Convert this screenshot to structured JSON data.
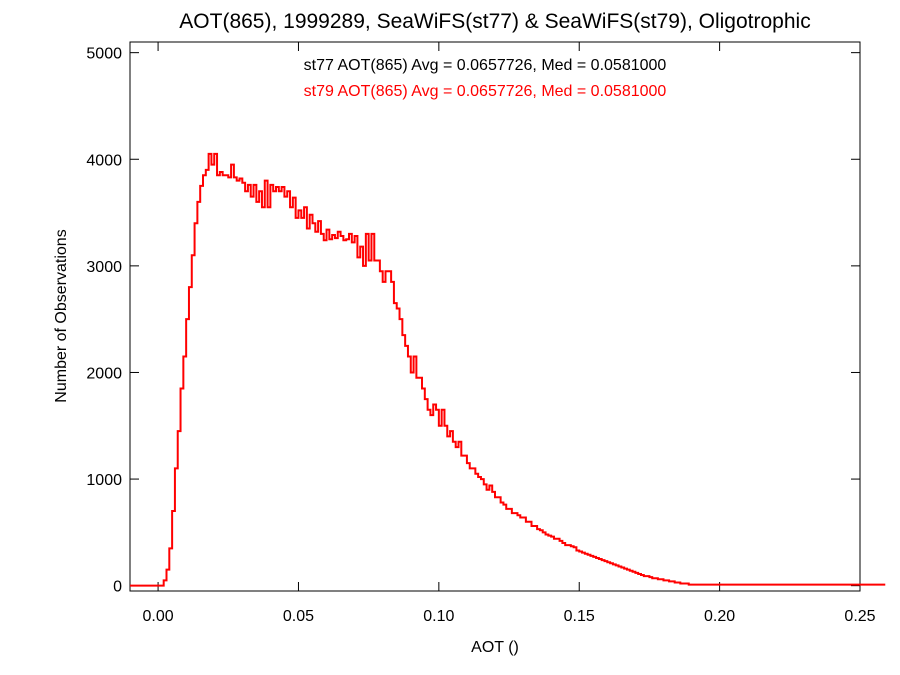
{
  "chart_data": {
    "type": "histogram-step",
    "title": "AOT(865), 1999289, SeaWiFS(st77) & SeaWiFS(st79), Oligotrophic",
    "xlabel": "AOT ()",
    "ylabel": "Number of Observations",
    "xlim": [
      -0.01,
      0.25
    ],
    "ylim": [
      -50,
      5100
    ],
    "xticks": [
      0.0,
      0.05,
      0.1,
      0.15,
      0.2,
      0.25
    ],
    "xtick_labels": [
      "0.00",
      "0.05",
      "0.10",
      "0.15",
      "0.20",
      "0.25"
    ],
    "yticks": [
      0,
      1000,
      2000,
      3000,
      4000,
      5000
    ],
    "ytick_labels": [
      "0",
      "1000",
      "2000",
      "3000",
      "4000",
      "5000"
    ],
    "grid": false,
    "annotations": [
      {
        "text": "st77 AOT(865) Avg = 0.0657726, Med = 0.0581000",
        "color": "#000000"
      },
      {
        "text": "st79 AOT(865) Avg = 0.0657726, Med = 0.0581000",
        "color": "#ff0000"
      }
    ],
    "bin_width": 0.001,
    "x_start": -0.01,
    "series": [
      {
        "color": "#ff0000",
        "values": [
          0,
          0,
          0,
          0,
          0,
          0,
          0,
          0,
          0,
          0,
          0,
          0,
          50,
          150,
          350,
          700,
          1100,
          1450,
          1850,
          2150,
          2500,
          2800,
          3100,
          3400,
          3600,
          3750,
          3850,
          3900,
          4050,
          3950,
          4050,
          3850,
          3880,
          3850,
          3850,
          3830,
          3950,
          3830,
          3800,
          3820,
          3780,
          3700,
          3760,
          3650,
          3760,
          3600,
          3700,
          3550,
          3800,
          3550,
          3760,
          3700,
          3740,
          3700,
          3740,
          3650,
          3700,
          3550,
          3640,
          3450,
          3520,
          3450,
          3550,
          3350,
          3480,
          3400,
          3320,
          3420,
          3300,
          3240,
          3340,
          3250,
          3290,
          3260,
          3320,
          3280,
          3240,
          3250,
          3300,
          3220,
          3280,
          3080,
          3180,
          3000,
          3300,
          3050,
          3300,
          3050,
          3050,
          2950,
          2850,
          2950,
          2950,
          2850,
          2650,
          2600,
          2500,
          2350,
          2250,
          2150,
          2000,
          2150,
          1950,
          1950,
          1850,
          1750,
          1650,
          1600,
          1700,
          1650,
          1500,
          1650,
          1500,
          1400,
          1450,
          1350,
          1300,
          1350,
          1220,
          1220,
          1150,
          1100,
          1100,
          1050,
          1020,
          1000,
          950,
          900,
          940,
          880,
          830,
          830,
          780,
          760,
          720,
          720,
          680,
          680,
          660,
          640,
          640,
          600,
          600,
          560,
          560,
          530,
          520,
          500,
          480,
          470,
          460,
          440,
          440,
          420,
          400,
          380,
          380,
          370,
          360,
          330,
          320,
          310,
          300,
          290,
          280,
          270,
          260,
          250,
          240,
          230,
          220,
          210,
          200,
          190,
          180,
          170,
          160,
          150,
          140,
          130,
          120,
          110,
          100,
          90,
          90,
          80,
          70,
          70,
          60,
          60,
          50,
          50,
          40,
          40,
          30,
          30,
          20,
          20,
          20,
          10,
          10,
          10,
          10,
          10,
          10,
          10,
          10,
          10,
          10,
          10,
          10,
          10,
          10,
          10,
          10,
          10,
          10,
          10,
          10,
          10,
          10,
          10,
          10,
          10,
          10,
          10,
          10,
          10,
          10,
          10,
          10,
          10,
          10,
          10,
          10,
          10,
          10,
          10,
          10,
          10,
          10,
          10,
          10,
          10,
          10,
          10,
          10,
          10,
          10,
          10,
          10,
          10,
          10,
          10,
          10,
          10,
          10,
          10,
          10,
          10,
          10,
          10,
          10,
          10,
          10,
          10,
          10,
          10,
          10
        ]
      }
    ]
  }
}
